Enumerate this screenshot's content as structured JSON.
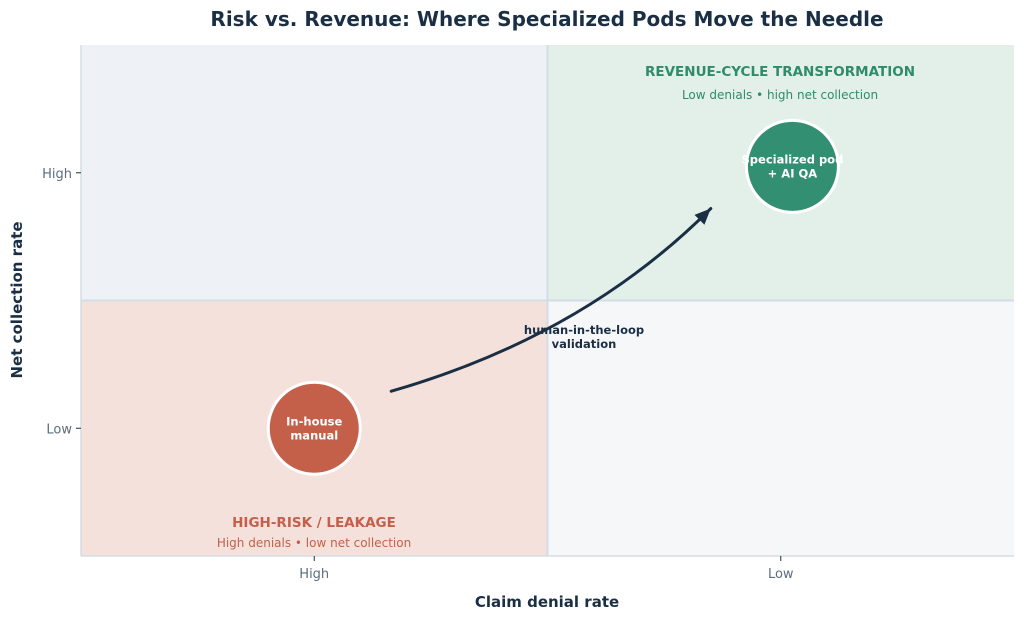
{
  "chart_data": {
    "type": "scatter",
    "title": "Risk vs. Revenue: Where Specialized Pods Move the Needle",
    "xlabel": "Claim denial rate",
    "ylabel": "Net collection rate",
    "x_ticks": [
      "High",
      "Low"
    ],
    "y_ticks": [
      "High",
      "Low"
    ],
    "xlim": [
      0,
      4
    ],
    "ylim": [
      0,
      4
    ],
    "grid": false,
    "quadrants": [
      {
        "id": "top-left",
        "color": "#eef2f6"
      },
      {
        "id": "top-right",
        "color": "#e3f0e9",
        "title": "REVENUE-CYCLE TRANSFORMATION",
        "subtitle": "Low denials • high net collection",
        "text_color": "#2e8b6b"
      },
      {
        "id": "bottom-left",
        "color": "#f5e1dc",
        "title": "HIGH-RISK / LEAKAGE",
        "subtitle": "High denials • low net collection",
        "text_color": "#c4604a"
      },
      {
        "id": "bottom-right",
        "color": "#f6f7f9"
      }
    ],
    "points": [
      {
        "label_lines": [
          "In-house",
          "manual"
        ],
        "x": 1,
        "y": 1,
        "color": "#c4604a"
      },
      {
        "label_lines": [
          "Specialized pod",
          "+ AI QA"
        ],
        "x": 3.05,
        "y": 3.05,
        "color": "#338f72"
      }
    ],
    "arrow": {
      "from": [
        1.33,
        1.29
      ],
      "to": [
        2.7,
        2.72
      ],
      "label_lines": [
        "human-in-the-loop",
        "validation"
      ],
      "color": "#1b2f44"
    }
  }
}
